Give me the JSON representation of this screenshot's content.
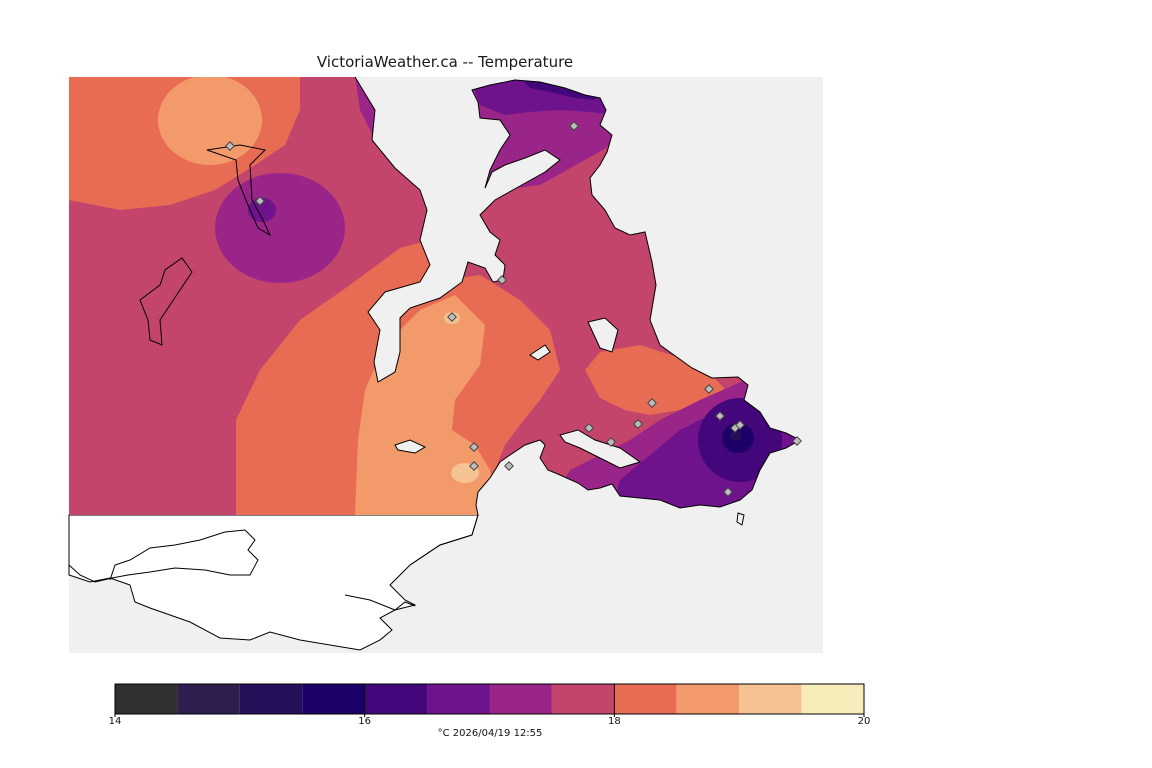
{
  "title": "VictoriaWeather.ca -- Temperature",
  "legend": {
    "unit": "°C",
    "timestamp": "2026/04/19 12:55",
    "units_line": "°C  2026/04/19 12:55",
    "range": [
      14,
      20
    ],
    "tick_labels": [
      "14",
      "16",
      "18",
      "20"
    ],
    "ticks": [
      14,
      16,
      18,
      20
    ],
    "bins": [
      {
        "from": 14.0,
        "to": 14.5,
        "color": "#303030"
      },
      {
        "from": 14.5,
        "to": 15.0,
        "color": "#2e1d4f"
      },
      {
        "from": 15.0,
        "to": 15.5,
        "color": "#26105a"
      },
      {
        "from": 15.5,
        "to": 16.0,
        "color": "#1c0067"
      },
      {
        "from": 16.0,
        "to": 16.5,
        "color": "#44077b"
      },
      {
        "from": 16.5,
        "to": 17.0,
        "color": "#6e138c"
      },
      {
        "from": 17.0,
        "to": 17.5,
        "color": "#9a2588"
      },
      {
        "from": 17.5,
        "to": 18.0,
        "color": "#c4456b"
      },
      {
        "from": 18.0,
        "to": 18.5,
        "color": "#e86c53"
      },
      {
        "from": 18.5,
        "to": 19.0,
        "color": "#f39a6b"
      },
      {
        "from": 19.0,
        "to": 19.5,
        "color": "#f5c393"
      },
      {
        "from": 19.5,
        "to": 20.0,
        "color": "#f6edbb"
      }
    ]
  },
  "colors": {
    "water": "#f0f0f0",
    "unanalyzed_land": "#ffffff",
    "coastline": "#000000",
    "station_marker": "#bdbdbd"
  }
}
